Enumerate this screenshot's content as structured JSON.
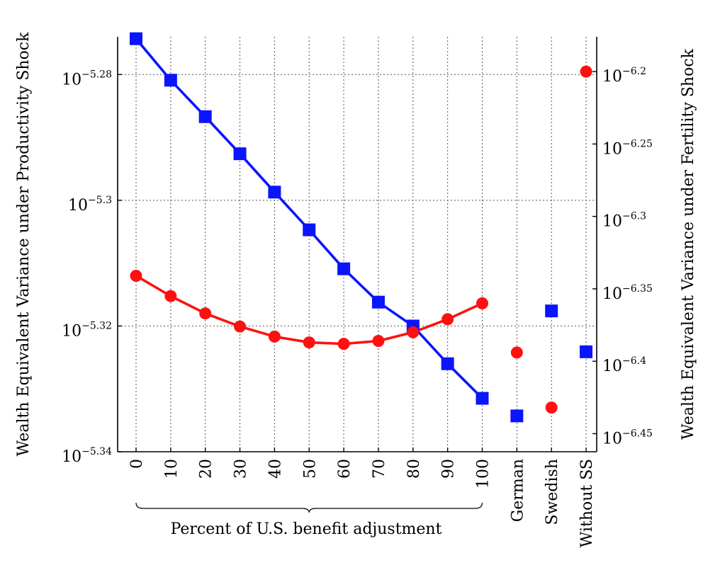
{
  "chart_data": {
    "type": "line",
    "categories": [
      "0",
      "10",
      "20",
      "30",
      "40",
      "50",
      "60",
      "70",
      "80",
      "90",
      "100",
      "German",
      "Swedish",
      "Without SS"
    ],
    "brace_label": "Percent of U.S. benefit adjustment",
    "left_axis": {
      "label": "Wealth Equivalent Variance under Productivity Shock",
      "scale": "log10",
      "ylim": [
        -5.34,
        -5.274
      ],
      "ticks": [
        {
          "exp": -5.28,
          "base": "10",
          "sup": "−5.28"
        },
        {
          "exp": -5.3,
          "base": "10",
          "sup": "−5.3"
        },
        {
          "exp": -5.32,
          "base": "10",
          "sup": "−5.32"
        },
        {
          "exp": -5.34,
          "base": "10",
          "sup": "−5.34"
        }
      ]
    },
    "right_axis": {
      "label": "Wealth Equivalent Variance under Fertility Shock",
      "scale": "log10",
      "ylim": [
        -6.4625,
        -6.176
      ],
      "ticks": [
        {
          "exp": -6.2,
          "base": "10",
          "sup": "−6.2"
        },
        {
          "exp": -6.25,
          "base": "10",
          "sup": "−6.25"
        },
        {
          "exp": -6.3,
          "base": "10",
          "sup": "−6.3"
        },
        {
          "exp": -6.35,
          "base": "10",
          "sup": "−6.35"
        },
        {
          "exp": -6.4,
          "base": "10",
          "sup": "−6.4"
        },
        {
          "exp": -6.45,
          "base": "10",
          "sup": "−6.45"
        }
      ]
    },
    "grid": true,
    "series": [
      {
        "axis": "left",
        "marker": "square",
        "color": "#0a14ff",
        "connected_upto_index": 10,
        "values": [
          -5.2743,
          -5.2809,
          -5.2867,
          -5.2926,
          -5.2987,
          -5.3047,
          -5.3109,
          -5.3162,
          -5.32,
          -5.326,
          -5.3315,
          -5.3343,
          -5.3176,
          -5.3241
        ]
      },
      {
        "axis": "right",
        "marker": "circle",
        "color": "#ff1010",
        "connected_upto_index": 10,
        "values": [
          -6.341,
          -6.355,
          -6.367,
          -6.376,
          -6.383,
          -6.387,
          -6.388,
          -6.386,
          -6.38,
          -6.371,
          -6.36,
          -6.394,
          -6.432,
          -6.2
        ]
      }
    ]
  }
}
